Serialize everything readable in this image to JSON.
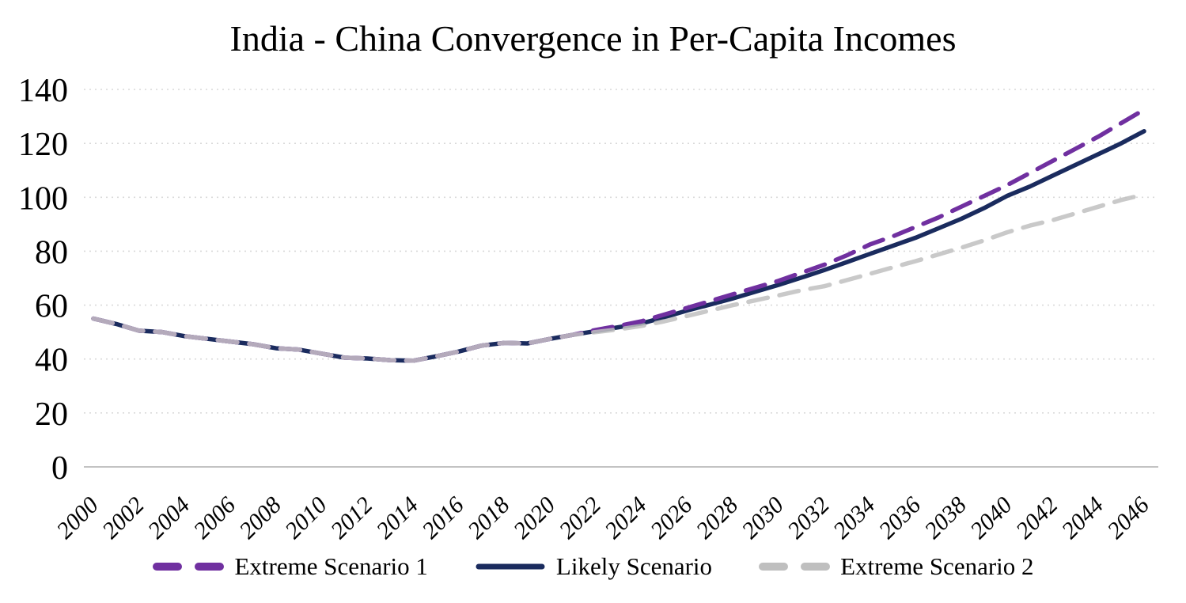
{
  "title": "India - China Convergence in Per-Capita Incomes",
  "colors": {
    "extreme1": "#7030A0",
    "likely": "#1A2B5E",
    "extreme2": "#BFBFBF",
    "gridline": "#D9D9D9",
    "axis_line": "#C3C3C3",
    "text": "#000000",
    "background": "#FFFFFF"
  },
  "legend": [
    {
      "label": "Extreme Scenario 1",
      "style": "dashed",
      "color": "#7030A0"
    },
    {
      "label": "Likely Scenario",
      "style": "solid",
      "color": "#1A2B5E"
    },
    {
      "label": "Extreme Scenario 2",
      "style": "dashed",
      "color": "#BFBFBF"
    }
  ],
  "chart_data": {
    "type": "line",
    "title": "India - China Convergence in Per-Capita Incomes",
    "xlabel": "",
    "ylabel": "",
    "ylim": [
      0,
      140
    ],
    "y_ticks": [
      0,
      20,
      40,
      60,
      80,
      100,
      120,
      140
    ],
    "x_tick_labels": [
      2000,
      2002,
      2004,
      2006,
      2008,
      2010,
      2012,
      2014,
      2016,
      2018,
      2020,
      2022,
      2024,
      2026,
      2028,
      2030,
      2032,
      2034,
      2036,
      2038,
      2040,
      2042,
      2044,
      2046
    ],
    "grid": "horizontal-dotted",
    "legend_position": "bottom",
    "x": [
      2000,
      2001,
      2002,
      2003,
      2004,
      2005,
      2006,
      2007,
      2008,
      2009,
      2010,
      2011,
      2012,
      2013,
      2014,
      2015,
      2016,
      2017,
      2018,
      2019,
      2020,
      2021,
      2022,
      2023,
      2024,
      2025,
      2026,
      2027,
      2028,
      2029,
      2030,
      2031,
      2032,
      2033,
      2034,
      2035,
      2036,
      2037,
      2038,
      2039,
      2040,
      2041,
      2042,
      2043,
      2044,
      2045,
      2046
    ],
    "series": [
      {
        "name": "Likely Scenario",
        "color": "#1A2B5E",
        "dash": false,
        "values": [
          55,
          53,
          50.5,
          50,
          48.5,
          47.5,
          46.5,
          45.5,
          44,
          43.5,
          42,
          40.5,
          40.2,
          39.6,
          39.4,
          41,
          42.8,
          45,
          46,
          45.8,
          47.5,
          49,
          50.4,
          51.8,
          53.2,
          55.5,
          58,
          60.2,
          62.5,
          65,
          67.5,
          70.2,
          73,
          76,
          79,
          82,
          85,
          88.5,
          92,
          96,
          100.5,
          104,
          108,
          112,
          116,
          120,
          124.5
        ]
      },
      {
        "name": "Extreme Scenario 1",
        "color": "#7030A0",
        "dash": true,
        "values": [
          55,
          53,
          50.5,
          50,
          48.5,
          47.5,
          46.5,
          45.5,
          44,
          43.5,
          42,
          40.5,
          40.2,
          39.6,
          39.4,
          41,
          42.8,
          45,
          46,
          45.8,
          47.5,
          49,
          50.8,
          52.3,
          54,
          56.5,
          59,
          61.5,
          64,
          66.5,
          69,
          72,
          75,
          78.5,
          82.5,
          85.5,
          89,
          92.5,
          96.5,
          100.5,
          104.5,
          109,
          113.5,
          118,
          122.5,
          127.5,
          132.5
        ]
      },
      {
        "name": "Extreme Scenario 2",
        "color": "#BFBFBF",
        "dash": true,
        "opacity": 0.85,
        "values": [
          55,
          53,
          50.5,
          50,
          48.5,
          47.5,
          46.5,
          45.5,
          44,
          43.5,
          42,
          40.5,
          40.2,
          39.6,
          39.4,
          41,
          42.8,
          45,
          46,
          45.8,
          47.5,
          49,
          50,
          51,
          52.3,
          54,
          56,
          58,
          60,
          61.8,
          63.6,
          65.5,
          67,
          69.3,
          71.6,
          74,
          76.3,
          78.8,
          81.3,
          84,
          87,
          89.5,
          91.5,
          94,
          96.5,
          99,
          101
        ]
      }
    ]
  }
}
